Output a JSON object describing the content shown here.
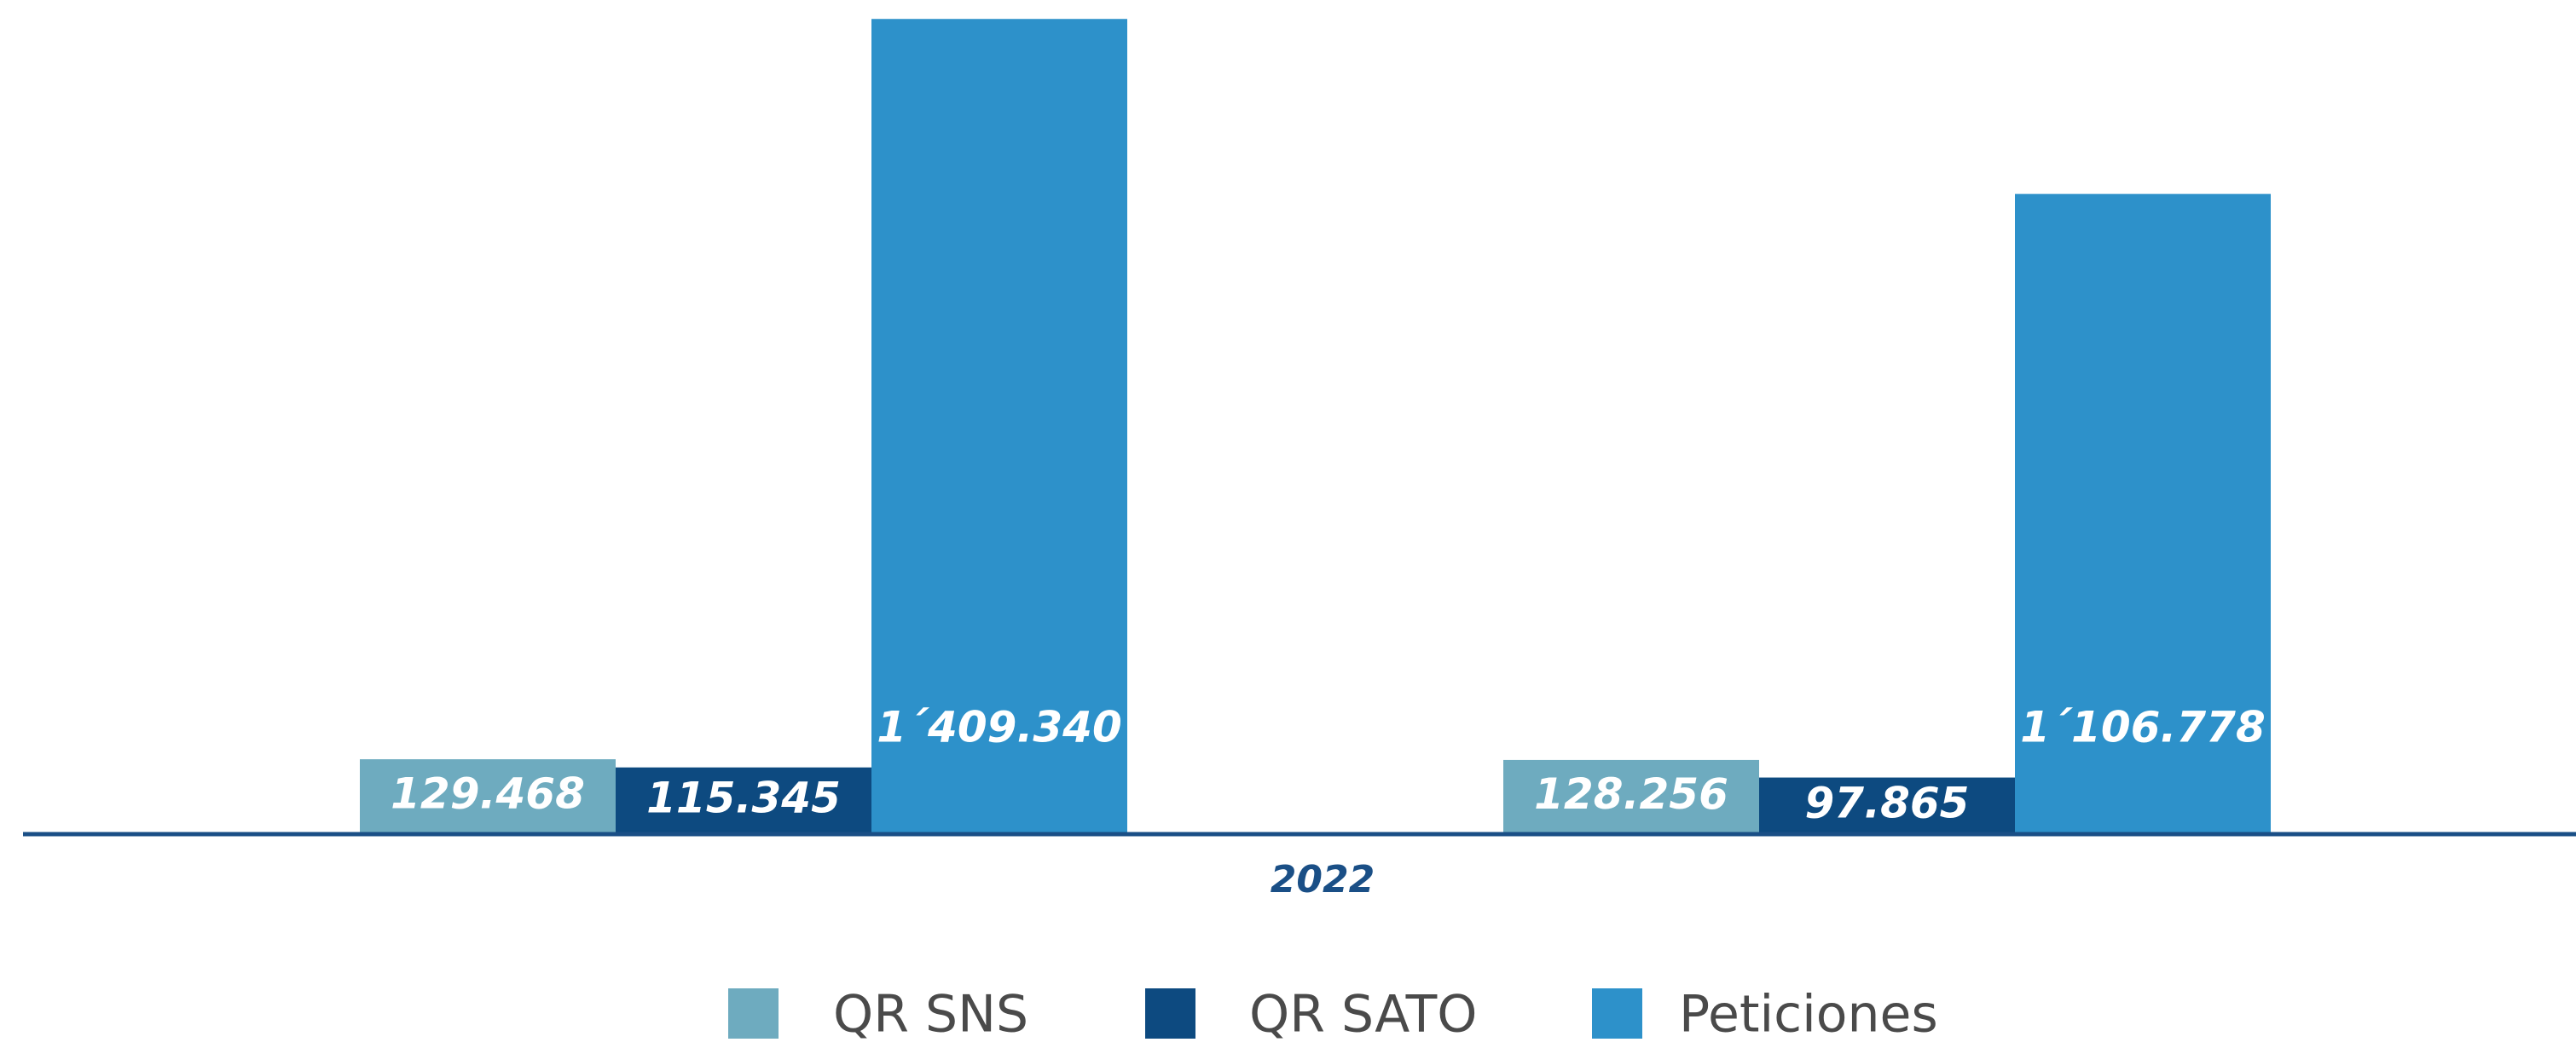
{
  "chart_data": {
    "type": "bar",
    "xlabel": "2022",
    "categories": [
      null,
      null
    ],
    "series": [
      {
        "name": "QR SNS",
        "color": "#6eabbf",
        "values": [
          129468,
          128256
        ],
        "value_labels": [
          "129.468",
          "128.256"
        ]
      },
      {
        "name": "QR SATO",
        "color": "#0d4a80",
        "values": [
          115345,
          97865
        ],
        "value_labels": [
          "115.345",
          "97.865"
        ]
      },
      {
        "name": "Peticiones",
        "color": "#2d91ca",
        "values": [
          1409340,
          1106778
        ],
        "value_labels": [
          "1´409.340",
          "1´106.778"
        ]
      }
    ],
    "ylim": [
      0,
      1420000
    ],
    "legend": "bottom"
  }
}
